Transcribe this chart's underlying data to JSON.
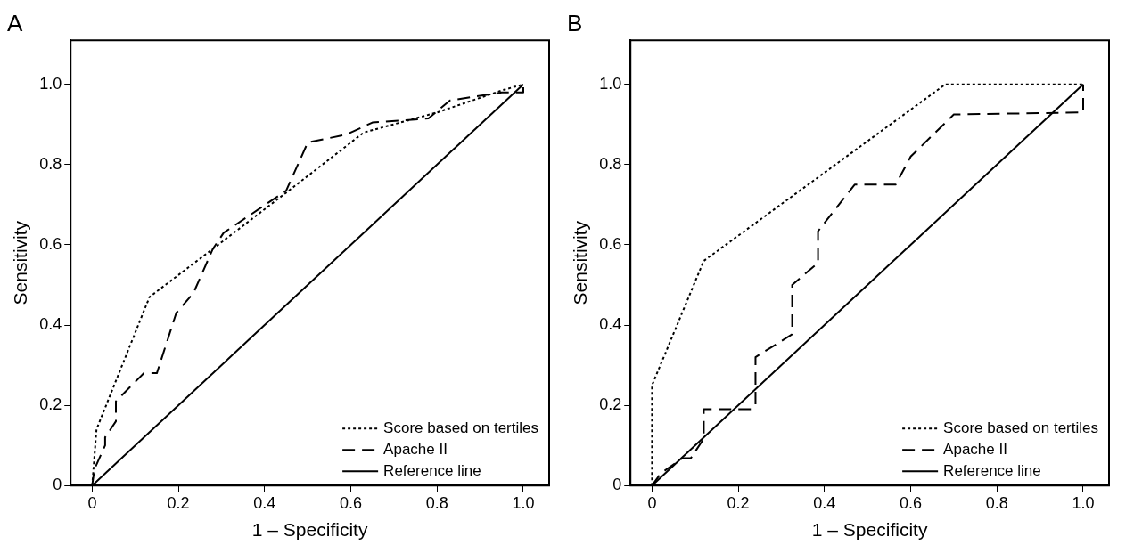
{
  "chart_data": [
    {
      "type": "line",
      "title": "A",
      "xlabel": "1 – Specificity",
      "ylabel": "Sensitivity",
      "xlim": [
        -0.05,
        1.06
      ],
      "ylim": [
        0,
        1.11
      ],
      "xticks": [
        0,
        0.2,
        0.4,
        0.6,
        0.8,
        {
          "value": 1,
          "label": "1.0"
        }
      ],
      "yticks": [
        0,
        0.2,
        0.4,
        0.6,
        0.8,
        {
          "value": 1,
          "label": "1.0"
        }
      ],
      "grid": false,
      "legend": "bottom right",
      "marker": "none",
      "series": [
        {
          "name": "Score based on tertiles",
          "color": "#000000",
          "line_style": "dotted",
          "x": [
            0,
            0.01,
            0.133,
            0.28,
            0.45,
            0.63,
            0.8,
            0.95,
            1
          ],
          "values": [
            0,
            0.14,
            0.47,
            0.59,
            0.73,
            0.88,
            0.93,
            0.985,
            1
          ]
        },
        {
          "name": "Apache II",
          "color": "#000000",
          "line_style": "dashed",
          "x": [
            0,
            0.005,
            0.03,
            0.03,
            0.055,
            0.055,
            0.12,
            0.15,
            0.195,
            0.235,
            0.28,
            0.305,
            0.45,
            0.5,
            0.59,
            0.65,
            0.78,
            0.83,
            0.95,
            1,
            1
          ],
          "values": [
            0,
            0.04,
            0.1,
            0.12,
            0.16,
            0.21,
            0.28,
            0.28,
            0.43,
            0.48,
            0.59,
            0.63,
            0.735,
            0.855,
            0.875,
            0.905,
            0.915,
            0.96,
            0.98,
            0.98,
            1
          ]
        },
        {
          "name": "Reference line",
          "color": "#000000",
          "line_style": "solid",
          "x": [
            0,
            1
          ],
          "values": [
            0,
            1
          ]
        }
      ]
    },
    {
      "type": "line",
      "title": "B",
      "xlabel": "1 – Specificity",
      "ylabel": "Sensitivity",
      "xlim": [
        -0.05,
        1.06
      ],
      "ylim": [
        0,
        1.11
      ],
      "xticks": [
        0,
        0.2,
        0.4,
        0.6,
        0.8,
        {
          "value": 1,
          "label": "1.0"
        }
      ],
      "yticks": [
        0,
        0.2,
        0.4,
        0.6,
        0.8,
        {
          "value": 1,
          "label": "1.0"
        }
      ],
      "grid": false,
      "legend": "bottom right",
      "marker": "none",
      "series": [
        {
          "name": "Score based on tertiles",
          "color": "#000000",
          "line_style": "dotted",
          "x": [
            0,
            0,
            0.12,
            0.68,
            1
          ],
          "values": [
            0,
            0.25,
            0.56,
            1,
            1
          ]
        },
        {
          "name": "Apache II",
          "color": "#000000",
          "line_style": "dashed",
          "x": [
            0,
            0.02,
            0.07,
            0.09,
            0.12,
            0.12,
            0.23,
            0.24,
            0.24,
            0.325,
            0.325,
            0.385,
            0.385,
            0.47,
            0.565,
            0.6,
            0.7,
            1,
            1
          ],
          "values": [
            0,
            0.03,
            0.068,
            0.068,
            0.117,
            0.19,
            0.19,
            0.2,
            0.32,
            0.377,
            0.5,
            0.555,
            0.634,
            0.75,
            0.75,
            0.82,
            0.925,
            0.93,
            1
          ]
        },
        {
          "name": "Reference line",
          "color": "#000000",
          "line_style": "solid",
          "x": [
            0,
            1
          ],
          "values": [
            0,
            1
          ]
        }
      ]
    }
  ]
}
